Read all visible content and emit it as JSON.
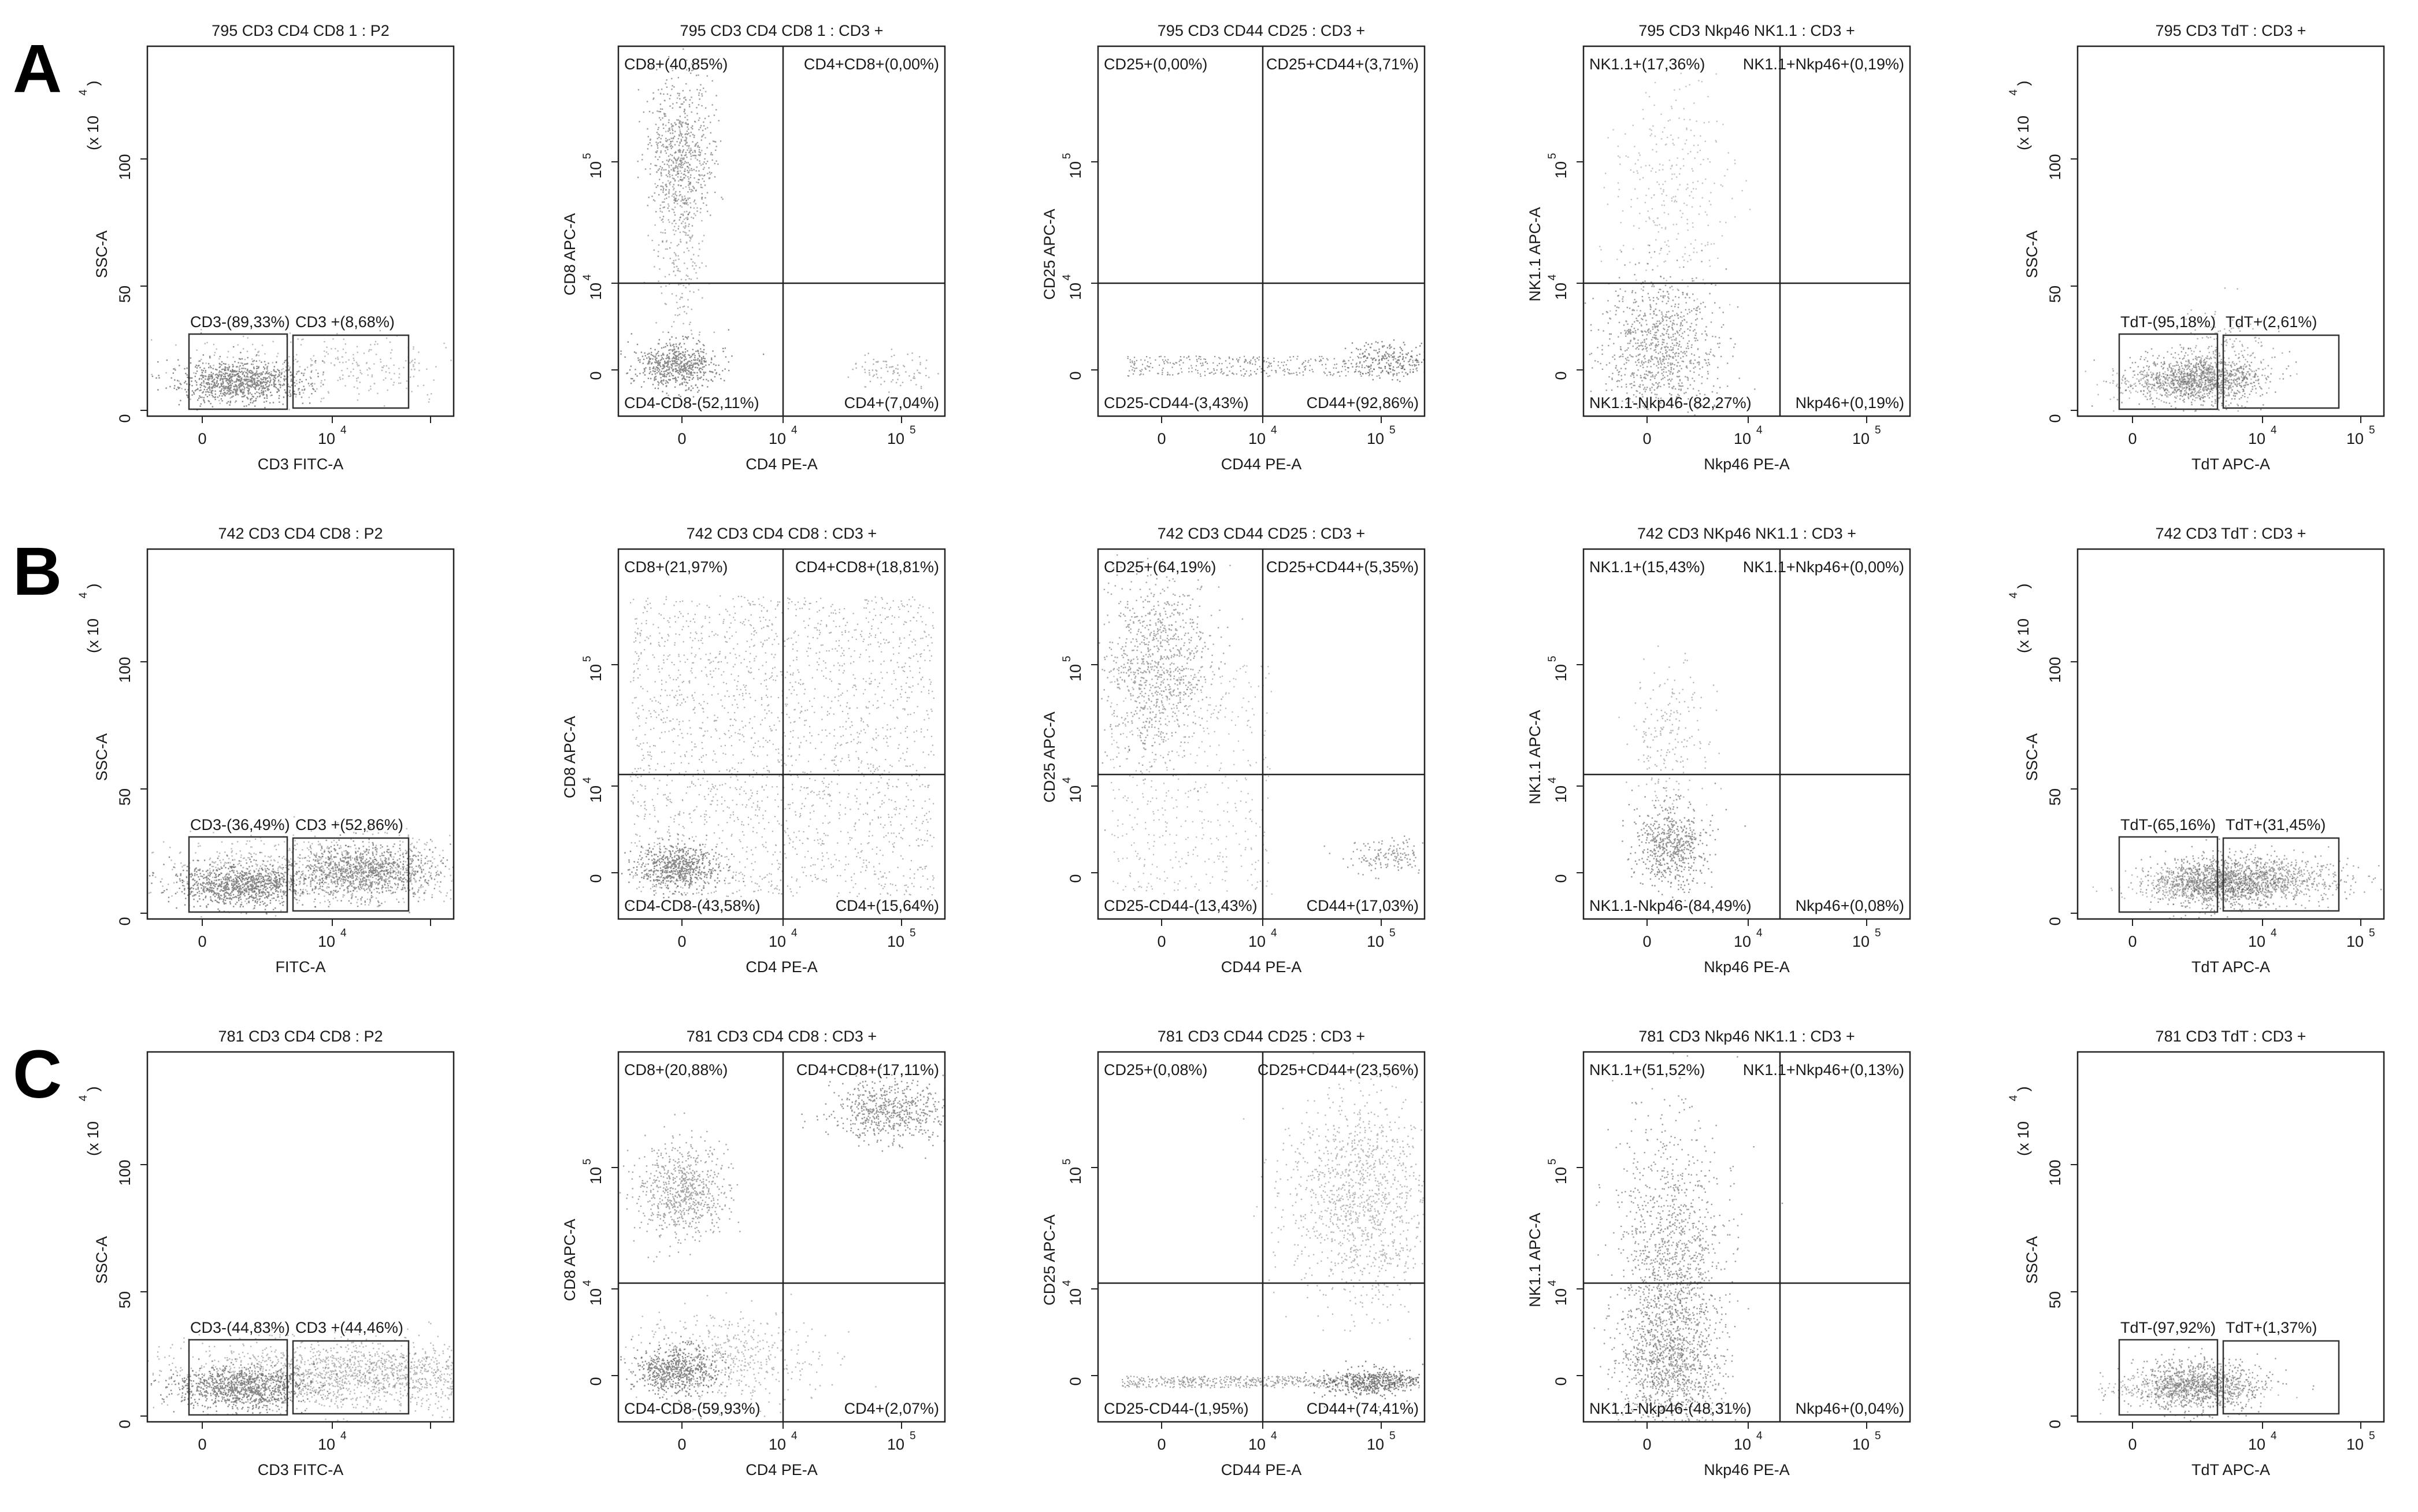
{
  "rows": [
    {
      "label": "A",
      "panels": [
        {
          "kind": "gate",
          "title": "795 CD3 CD4 CD8 1 : P2",
          "xlabel": "CD3 FITC-A",
          "ylabel": "SSC-A",
          "multiplier": "(x 10",
          "mult_exp": "4",
          "gates": [
            "CD3-(89,33%)",
            "CD3 +(8,68%)"
          ]
        },
        {
          "kind": "quad",
          "title": "795 CD3 CD4 CD8 1 : CD3 +",
          "xlabel": "CD4 PE-A",
          "ylabel": "CD8 APC-A",
          "q": [
            "CD8+(40,85%)",
            "CD4+CD8+(0,00%)",
            "CD4-CD8-(52,11%)",
            "CD4+(7,04%)"
          ]
        },
        {
          "kind": "quad",
          "title": "795 CD3 CD44 CD25 : CD3 +",
          "xlabel": "CD44 PE-A",
          "ylabel": "CD25 APC-A",
          "q": [
            "CD25+(0,00%)",
            "CD25+CD44+(3,71%)",
            "CD25-CD44-(3,43%)",
            "CD44+(92,86%)"
          ]
        },
        {
          "kind": "quad",
          "title": "795 CD3 Nkp46 NK1.1 : CD3 +",
          "xlabel": "Nkp46 PE-A",
          "ylabel": "NK1.1 APC-A",
          "q": [
            "NK1.1+(17,36%)",
            "NK1.1+Nkp46+(0,19%)",
            "NK1.1-Nkp46-(82,27%)",
            "Nkp46+(0,19%)"
          ]
        },
        {
          "kind": "gate",
          "title": "795 CD3 TdT : CD3 +",
          "xlabel": "TdT APC-A",
          "ylabel": "SSC-A",
          "multiplier": "(x 10",
          "mult_exp": "4",
          "gates": [
            "TdT-(95,18%)",
            "TdT+(2,61%)"
          ]
        }
      ]
    },
    {
      "label": "B",
      "panels": [
        {
          "kind": "gate",
          "title": "742 CD3 CD4 CD8 : P2",
          "xlabel": "FITC-A",
          "ylabel": "SSC-A",
          "multiplier": "(x 10",
          "mult_exp": "4",
          "gates": [
            "CD3-(36,49%)",
            "CD3 +(52,86%)"
          ]
        },
        {
          "kind": "quad",
          "title": "742 CD3 CD4 CD8 : CD3 +",
          "xlabel": "CD4 PE-A",
          "ylabel": "CD8 APC-A",
          "q": [
            "CD8+(21,97%)",
            "CD4+CD8+(18,81%)",
            "CD4-CD8-(43,58%)",
            "CD4+(15,64%)"
          ]
        },
        {
          "kind": "quad",
          "title": "742 CD3 CD44 CD25 : CD3 +",
          "xlabel": "CD44 PE-A",
          "ylabel": "CD25 APC-A",
          "q": [
            "CD25+(64,19%)",
            "CD25+CD44+(5,35%)",
            "CD25-CD44-(13,43%)",
            "CD44+(17,03%)"
          ]
        },
        {
          "kind": "quad",
          "title": "742 CD3 NKp46 NK1.1 : CD3 +",
          "xlabel": "Nkp46 PE-A",
          "ylabel": "NK1.1 APC-A",
          "q": [
            "NK1.1+(15,43%)",
            "NK1.1+Nkp46+(0,00%)",
            "NK1.1-Nkp46-(84,49%)",
            "Nkp46+(0,08%)"
          ]
        },
        {
          "kind": "gate",
          "title": "742 CD3 TdT : CD3 +",
          "xlabel": "TdT APC-A",
          "ylabel": "SSC-A",
          "multiplier": "(x 10",
          "mult_exp": "4",
          "gates": [
            "TdT-(65,16%)",
            "TdT+(31,45%)"
          ]
        }
      ]
    },
    {
      "label": "C",
      "panels": [
        {
          "kind": "gate",
          "title": "781 CD3 CD4 CD8 : P2",
          "xlabel": "CD3 FITC-A",
          "ylabel": "SSC-A",
          "multiplier": "(x 10",
          "mult_exp": "4",
          "gates": [
            "CD3-(44,83%)",
            "CD3 +(44,46%)"
          ]
        },
        {
          "kind": "quad",
          "title": "781 CD3 CD4 CD8 : CD3 +",
          "xlabel": "CD4 PE-A",
          "ylabel": "CD8 APC-A",
          "q": [
            "CD8+(20,88%)",
            "CD4+CD8+(17,11%)",
            "CD4-CD8-(59,93%)",
            "CD4+(2,07%)"
          ]
        },
        {
          "kind": "quad",
          "title": "781 CD3 CD44 CD25 : CD3 +",
          "xlabel": "CD44 PE-A",
          "ylabel": "CD25 APC-A",
          "q": [
            "CD25+(0,08%)",
            "CD25+CD44+(23,56%)",
            "CD25-CD44-(1,95%)",
            "CD44+(74,41%)"
          ]
        },
        {
          "kind": "quad",
          "title": "781 CD3 Nkp46 NK1.1 : CD3 +",
          "xlabel": "Nkp46 PE-A",
          "ylabel": "NK1.1 APC-A",
          "q": [
            "NK1.1+(51,52%)",
            "NK1.1+Nkp46+(0,13%)",
            "NK1.1-Nkp46-(48,31%)",
            "Nkp46+(0,04%)"
          ]
        },
        {
          "kind": "gate",
          "title": "781 CD3 TdT : CD3 +",
          "xlabel": "TdT APC-A",
          "ylabel": "SSC-A",
          "multiplier": "(x 10",
          "mult_exp": "4",
          "gates": [
            "TdT-(97,92%)",
            "TdT+(1,37%)"
          ]
        }
      ]
    }
  ],
  "linear_axis": {
    "x_ticks": [
      "0",
      "10",
      "4"
    ],
    "y_ticks": [
      "0",
      "50",
      "100"
    ]
  },
  "log_axis": {
    "ticks": [
      {
        "base": "0"
      },
      {
        "base": "10",
        "exp": "4"
      },
      {
        "base": "10",
        "exp": "5"
      }
    ]
  },
  "colors": {
    "dots": "#3a3a3a",
    "frame": "#222222",
    "gate": "#333333",
    "text": "#1a1a1a"
  },
  "chart_data": [
    {
      "type": "scatter",
      "panel": "A1",
      "title": "795 CD3 CD4 CD8 1 : P2",
      "xlabel": "CD3 FITC-A",
      "ylabel": "SSC-A",
      "x_scale": "biexponential",
      "y_scale": "linear",
      "y_multiplier": "x 10^4",
      "ylim": [
        0,
        130
      ],
      "gates": [
        {
          "name": "CD3-",
          "percent": 89.33
        },
        {
          "name": "CD3 +",
          "percent": 8.68
        }
      ]
    },
    {
      "type": "scatter",
      "panel": "A2",
      "title": "795 CD3 CD4 CD8 1 : CD3 +",
      "xlabel": "CD4 PE-A",
      "ylabel": "CD8 APC-A",
      "x_scale": "biexponential",
      "y_scale": "biexponential",
      "quadrants": {
        "upper_left": [
          "CD8+",
          40.85
        ],
        "upper_right": [
          "CD4+CD8+",
          0.0
        ],
        "lower_left": [
          "CD4-CD8-",
          52.11
        ],
        "lower_right": [
          "CD4+",
          7.04
        ]
      }
    },
    {
      "type": "scatter",
      "panel": "A3",
      "title": "795 CD3 CD44 CD25 : CD3 +",
      "xlabel": "CD44 PE-A",
      "ylabel": "CD25 APC-A",
      "quadrants": {
        "upper_left": [
          "CD25+",
          0.0
        ],
        "upper_right": [
          "CD25+CD44+",
          3.71
        ],
        "lower_left": [
          "CD25-CD44-",
          3.43
        ],
        "lower_right": [
          "CD44+",
          92.86
        ]
      }
    },
    {
      "type": "scatter",
      "panel": "A4",
      "title": "795 CD3 Nkp46 NK1.1 : CD3 +",
      "xlabel": "Nkp46 PE-A",
      "ylabel": "NK1.1 APC-A",
      "quadrants": {
        "upper_left": [
          "NK1.1+",
          17.36
        ],
        "upper_right": [
          "NK1.1+Nkp46+",
          0.19
        ],
        "lower_left": [
          "NK1.1-Nkp46-",
          82.27
        ],
        "lower_right": [
          "Nkp46+",
          0.19
        ]
      }
    },
    {
      "type": "scatter",
      "panel": "A5",
      "title": "795 CD3 TdT : CD3 +",
      "xlabel": "TdT APC-A",
      "ylabel": "SSC-A",
      "y_multiplier": "x 10^4",
      "gates": [
        {
          "name": "TdT-",
          "percent": 95.18
        },
        {
          "name": "TdT+",
          "percent": 2.61
        }
      ]
    },
    {
      "type": "scatter",
      "panel": "B1",
      "title": "742 CD3 CD4 CD8 : P2",
      "xlabel": "FITC-A",
      "ylabel": "SSC-A",
      "y_multiplier": "x 10^4",
      "gates": [
        {
          "name": "CD3-",
          "percent": 36.49
        },
        {
          "name": "CD3 +",
          "percent": 52.86
        }
      ]
    },
    {
      "type": "scatter",
      "panel": "B2",
      "title": "742 CD3 CD4 CD8 : CD3 +",
      "xlabel": "CD4 PE-A",
      "ylabel": "CD8 APC-A",
      "quadrants": {
        "upper_left": [
          "CD8+",
          21.97
        ],
        "upper_right": [
          "CD4+CD8+",
          18.81
        ],
        "lower_left": [
          "CD4-CD8-",
          43.58
        ],
        "lower_right": [
          "CD4+",
          15.64
        ]
      }
    },
    {
      "type": "scatter",
      "panel": "B3",
      "title": "742 CD3 CD44 CD25 : CD3 +",
      "xlabel": "CD44 PE-A",
      "ylabel": "CD25 APC-A",
      "quadrants": {
        "upper_left": [
          "CD25+",
          64.19
        ],
        "upper_right": [
          "CD25+CD44+",
          5.35
        ],
        "lower_left": [
          "CD25-CD44-",
          13.43
        ],
        "lower_right": [
          "CD44+",
          17.03
        ]
      }
    },
    {
      "type": "scatter",
      "panel": "B4",
      "title": "742 CD3 NKp46 NK1.1 : CD3 +",
      "xlabel": "Nkp46 PE-A",
      "ylabel": "NK1.1 APC-A",
      "quadrants": {
        "upper_left": [
          "NK1.1+",
          15.43
        ],
        "upper_right": [
          "NK1.1+Nkp46+",
          0.0
        ],
        "lower_left": [
          "NK1.1-Nkp46-",
          84.49
        ],
        "lower_right": [
          "Nkp46+",
          0.08
        ]
      }
    },
    {
      "type": "scatter",
      "panel": "B5",
      "title": "742 CD3 TdT : CD3 +",
      "xlabel": "TdT APC-A",
      "ylabel": "SSC-A",
      "y_multiplier": "x 10^4",
      "gates": [
        {
          "name": "TdT-",
          "percent": 65.16
        },
        {
          "name": "TdT+",
          "percent": 31.45
        }
      ]
    },
    {
      "type": "scatter",
      "panel": "C1",
      "title": "781 CD3 CD4 CD8 : P2",
      "xlabel": "CD3 FITC-A",
      "ylabel": "SSC-A",
      "y_multiplier": "x 10^4",
      "gates": [
        {
          "name": "CD3-",
          "percent": 44.83
        },
        {
          "name": "CD3 +",
          "percent": 44.46
        }
      ]
    },
    {
      "type": "scatter",
      "panel": "C2",
      "title": "781 CD3 CD4 CD8 : CD3 +",
      "xlabel": "CD4 PE-A",
      "ylabel": "CD8 APC-A",
      "quadrants": {
        "upper_left": [
          "CD8+",
          20.88
        ],
        "upper_right": [
          "CD4+CD8+",
          17.11
        ],
        "lower_left": [
          "CD4-CD8-",
          59.93
        ],
        "lower_right": [
          "CD4+",
          2.07
        ]
      }
    },
    {
      "type": "scatter",
      "panel": "C3",
      "title": "781 CD3 CD44 CD25 : CD3 +",
      "xlabel": "CD44 PE-A",
      "ylabel": "CD25 APC-A",
      "quadrants": {
        "upper_left": [
          "CD25+",
          0.08
        ],
        "upper_right": [
          "CD25+CD44+",
          23.56
        ],
        "lower_left": [
          "CD25-CD44-",
          1.95
        ],
        "lower_right": [
          "CD44+",
          74.41
        ]
      }
    },
    {
      "type": "scatter",
      "panel": "C4",
      "title": "781 CD3 Nkp46 NK1.1 : CD3 +",
      "xlabel": "Nkp46 PE-A",
      "ylabel": "NK1.1 APC-A",
      "quadrants": {
        "upper_left": [
          "NK1.1+",
          51.52
        ],
        "upper_right": [
          "NK1.1+Nkp46+",
          0.13
        ],
        "lower_left": [
          "NK1.1-Nkp46-",
          48.31
        ],
        "lower_right": [
          "Nkp46+",
          0.04
        ]
      }
    },
    {
      "type": "scatter",
      "panel": "C5",
      "title": "781 CD3 TdT : CD3 +",
      "xlabel": "TdT APC-A",
      "ylabel": "SSC-A",
      "y_multiplier": "x 10^4",
      "gates": [
        {
          "name": "TdT-",
          "percent": 97.92
        },
        {
          "name": "TdT+",
          "percent": 1.37
        }
      ]
    }
  ]
}
